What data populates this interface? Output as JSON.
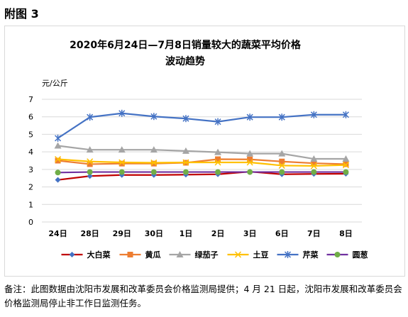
{
  "figure_label": "附图 3",
  "chart_data": {
    "type": "line",
    "title_lines": [
      "2020年6月24日—7月8日销量较大的蔬菜平均价格",
      "波动趋势"
    ],
    "ylabel": "元/公斤",
    "xlabel": "",
    "categories": [
      "24日",
      "28日",
      "29日",
      "30日",
      "1日",
      "2日",
      "3日",
      "6日",
      "7日",
      "8日"
    ],
    "ylim": [
      0,
      7
    ],
    "yticks": [
      0,
      1,
      2,
      3,
      4,
      5,
      6,
      7
    ],
    "grid": true,
    "legend_position": "bottom",
    "series": [
      {
        "name": "大白菜",
        "color": "#c00000",
        "marker": "diamond",
        "marker_color": "#4472c4",
        "values": [
          2.4,
          2.62,
          2.68,
          2.68,
          2.7,
          2.72,
          2.87,
          2.72,
          2.74,
          2.75
        ]
      },
      {
        "name": "黄瓜",
        "color": "#ed7d31",
        "marker": "square",
        "marker_color": "#ed7d31",
        "values": [
          3.5,
          3.3,
          3.33,
          3.33,
          3.38,
          3.58,
          3.57,
          3.45,
          3.35,
          3.3
        ]
      },
      {
        "name": "绿茄子",
        "color": "#a5a5a5",
        "marker": "triangle",
        "marker_color": "#a5a5a5",
        "values": [
          4.35,
          4.12,
          4.12,
          4.12,
          4.05,
          3.98,
          3.9,
          3.9,
          3.6,
          3.6
        ]
      },
      {
        "name": "土豆",
        "color": "#ffc000",
        "marker": "x",
        "marker_color": "#ffc000",
        "values": [
          3.58,
          3.45,
          3.4,
          3.38,
          3.4,
          3.4,
          3.4,
          3.22,
          3.2,
          3.25
        ]
      },
      {
        "name": "芹菜",
        "color": "#4472c4",
        "marker": "star",
        "marker_color": "#4472c4",
        "values": [
          4.78,
          5.98,
          6.2,
          6.02,
          5.9,
          5.72,
          5.98,
          5.98,
          6.12,
          6.12
        ]
      },
      {
        "name": "圆葱",
        "color": "#7030a0",
        "marker": "circle",
        "marker_color": "#70ad47",
        "values": [
          2.82,
          2.85,
          2.85,
          2.85,
          2.85,
          2.85,
          2.85,
          2.85,
          2.85,
          2.85
        ]
      }
    ]
  },
  "footnote": "备注：此图数据由沈阳市发展和改革委员会价格监测局提供；4 月 21 日起，沈阳市发展和改革委员会价格监测局停止非工作日监测任务。"
}
